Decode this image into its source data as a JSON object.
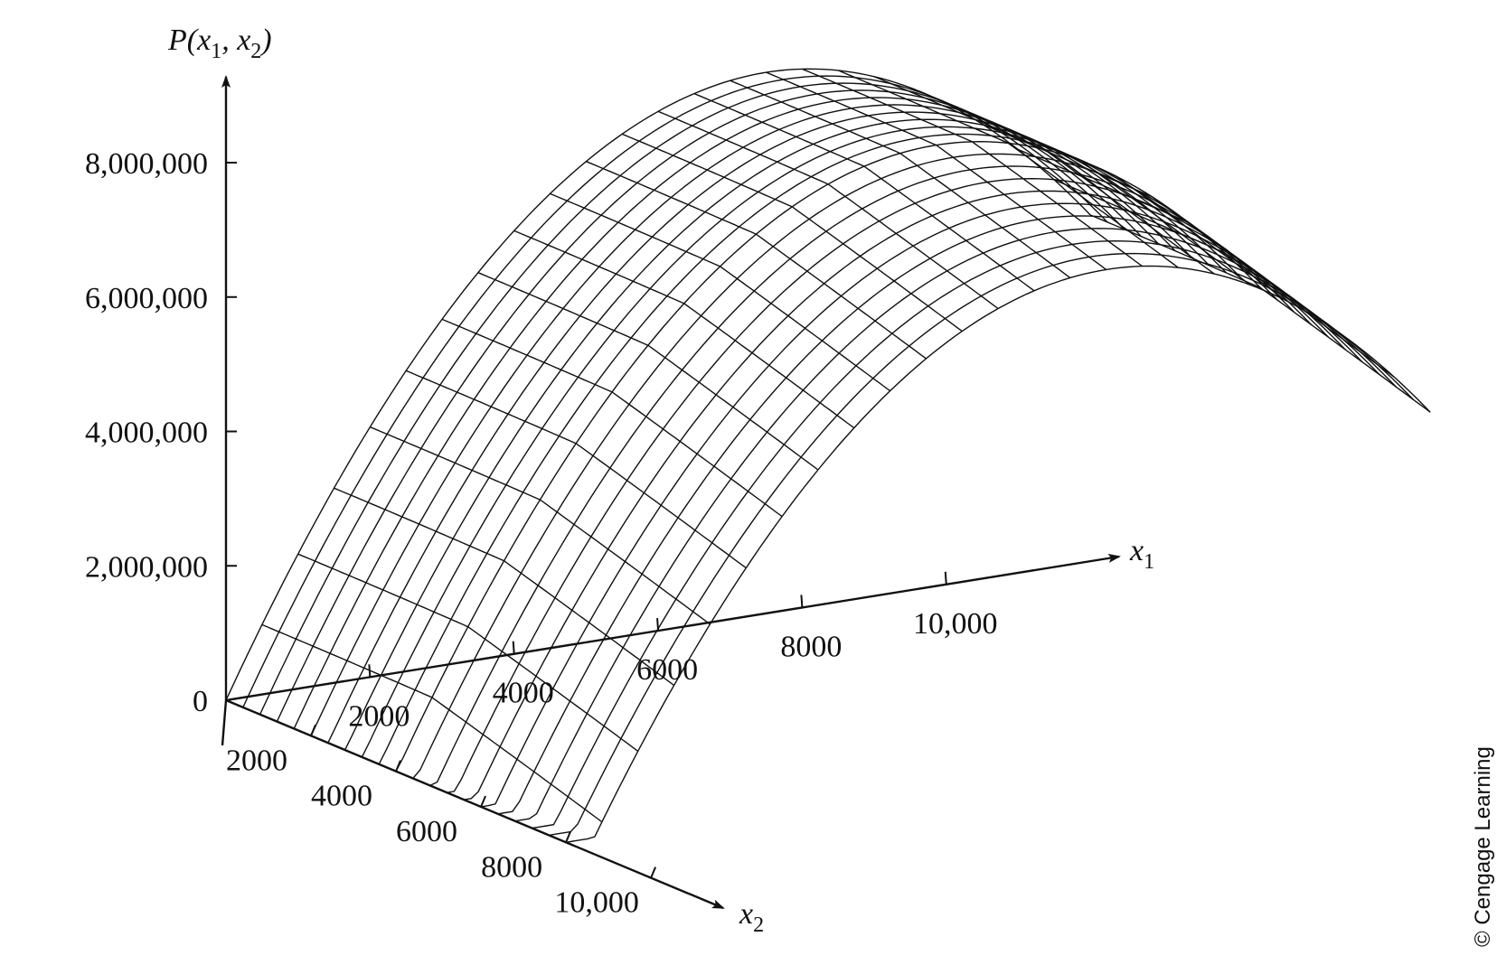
{
  "chart_data": {
    "type": "surface",
    "function": "P(x1, x2)",
    "z_axis": {
      "label_base": "P(",
      "label_var1": "x",
      "label_sub1": "1",
      "label_sep": ", ",
      "label_var2": "x",
      "label_sub2": "2",
      "label_close": ")",
      "ticks": [
        {
          "value": 0,
          "label": "0"
        },
        {
          "value": 2000000,
          "label": "2,000,000"
        },
        {
          "value": 4000000,
          "label": "4,000,000"
        },
        {
          "value": 6000000,
          "label": "6,000,000"
        },
        {
          "value": 8000000,
          "label": "8,000,000"
        }
      ]
    },
    "x1_axis": {
      "label_var": "x",
      "label_sub": "1",
      "ticks": [
        {
          "value": 2000,
          "label": "2000"
        },
        {
          "value": 4000,
          "label": "4000"
        },
        {
          "value": 6000,
          "label": "6000"
        },
        {
          "value": 8000,
          "label": "8000"
        },
        {
          "value": 10000,
          "label": "10,000"
        }
      ]
    },
    "x2_axis": {
      "label_var": "x",
      "label_sub": "2",
      "ticks": [
        {
          "value": 2000,
          "label": "2000"
        },
        {
          "value": 4000,
          "label": "4000"
        },
        {
          "value": 6000,
          "label": "6000"
        },
        {
          "value": 8000,
          "label": "8000"
        },
        {
          "value": 10000,
          "label": "10,000"
        }
      ]
    },
    "surface_points": [
      {
        "x1": 0,
        "x2": 0,
        "P": 0
      },
      {
        "x1": 4800,
        "x2": 0,
        "P": 7400000
      },
      {
        "x1": 7500,
        "x2": 0,
        "P": 8050000
      },
      {
        "x1": 12000,
        "x2": 0,
        "P": 6100000
      },
      {
        "x1": 12000,
        "x2": 8000,
        "P": 3300000
      },
      {
        "x1": 6000,
        "x2": 8000,
        "P": 5500000
      },
      {
        "x1": 3000,
        "x2": 8000,
        "P": 4100000
      }
    ]
  },
  "credit": "© Cengage Learning"
}
